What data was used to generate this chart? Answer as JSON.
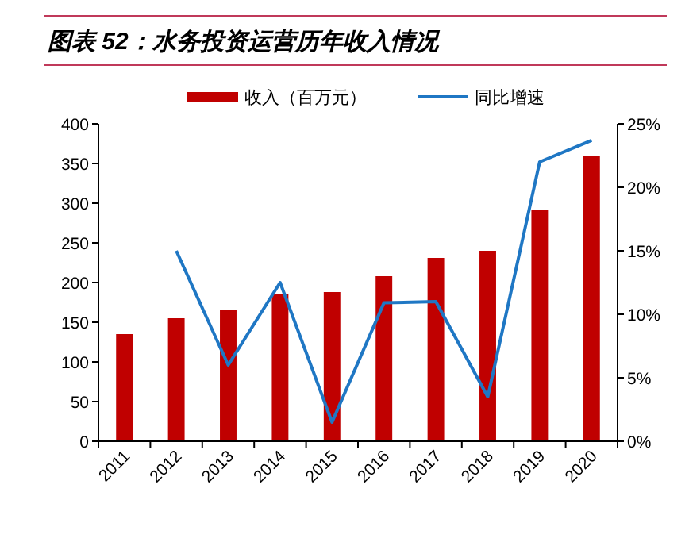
{
  "chart_data": {
    "type": "bar",
    "title": "图表 52：水务投资运营历年收入情况",
    "categories": [
      "2011",
      "2012",
      "2013",
      "2014",
      "2015",
      "2016",
      "2017",
      "2018",
      "2019",
      "2020"
    ],
    "series": [
      {
        "name": "收入（百万元）",
        "color": "#c00000",
        "values": [
          135,
          155,
          165,
          185,
          188,
          208,
          231,
          240,
          292,
          360
        ]
      },
      {
        "name": "同比增速",
        "type": "line",
        "axis": "y2",
        "color": "#1f77c4",
        "values": [
          null,
          15,
          6,
          12.5,
          1.5,
          10.9,
          11.0,
          3.5,
          22,
          23.7
        ]
      }
    ],
    "ylim": [
      0,
      400
    ],
    "yticks": [
      0,
      50,
      100,
      150,
      200,
      250,
      300,
      350,
      400
    ],
    "y2lim": [
      0,
      25
    ],
    "y2ticks": [
      {
        "value": 0,
        "label": "0%"
      },
      {
        "value": 5,
        "label": "5%"
      },
      {
        "value": 10,
        "label": "10%"
      },
      {
        "value": 15,
        "label": "15%"
      },
      {
        "value": 20,
        "label": "20%"
      },
      {
        "value": 25,
        "label": "25%"
      }
    ],
    "legend": "top",
    "grid": false
  }
}
